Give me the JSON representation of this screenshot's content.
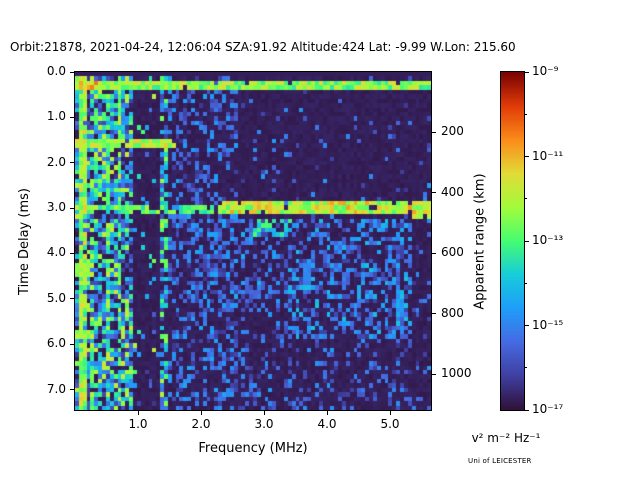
{
  "chart_data": {
    "type": "heatmap",
    "title": "Orbit:21878, 2021-04-24, 12:06:04 SZA:91.92 Altitude:424 Lat: -9.99 W.Lon: 215.60",
    "xlabel": "Frequency (MHz)",
    "ylabel": "Time Delay (ms)",
    "ylabel_right": "Apparent range (km)",
    "colorbar_label": "v² m⁻² Hz⁻¹",
    "credit": "Uni of LEICESTER",
    "x_range_mhz": [
      0.0,
      5.65
    ],
    "y_range_ms": [
      0.0,
      7.45
    ],
    "xticks": {
      "values": [
        1,
        2,
        3,
        4,
        5
      ],
      "labels": [
        "1.0",
        "2.0",
        "3.0",
        "4.0",
        "5.0"
      ]
    },
    "yticks": {
      "values": [
        0,
        1,
        2,
        3,
        4,
        5,
        6,
        7
      ],
      "labels": [
        "0.0",
        "1.0",
        "2.0",
        "3.0",
        "4.0",
        "5.0",
        "6.0",
        "7.0"
      ]
    },
    "right_axis": {
      "km_per_ms": 150,
      "values": [
        200,
        400,
        600,
        800,
        1000
      ],
      "labels": [
        "200",
        "400",
        "600",
        "800",
        "1000"
      ]
    },
    "colorbar": {
      "scale": "log10",
      "min_exp": -17,
      "max_exp": -9,
      "tick_exps": [
        -9,
        -11,
        -13,
        -15,
        -17
      ],
      "tick_labels": [
        "10⁻⁹",
        "10⁻¹¹",
        "10⁻¹³",
        "10⁻¹⁵",
        "10⁻¹⁷"
      ],
      "minor_exps": [
        -10,
        -12,
        -14,
        -16
      ]
    },
    "colormap": {
      "name": "turbo",
      "stops": [
        [
          0.0,
          48,
          18,
          59
        ],
        [
          0.1,
          64,
          64,
          162
        ],
        [
          0.2,
          70,
          107,
          227
        ],
        [
          0.3,
          31,
          158,
          250
        ],
        [
          0.4,
          24,
          205,
          218
        ],
        [
          0.5,
          70,
          253,
          114
        ],
        [
          0.6,
          164,
          252,
          60
        ],
        [
          0.7,
          226,
          220,
          56
        ],
        [
          0.8,
          252,
          140,
          27
        ],
        [
          0.9,
          225,
          60,
          8
        ],
        [
          1.0,
          122,
          4,
          3
        ]
      ]
    },
    "heatmap": {
      "nx": 92,
      "ny": 76,
      "seed": 1337,
      "background": 0.03,
      "features": {
        "sparse_speckle": {
          "prob": 0.05,
          "vmin": 0.08,
          "vmax": 0.3
        },
        "mid_speckle": {
          "f_min": 1.36,
          "f_max": 2.6,
          "prob": 0.28,
          "vmin": 0.08,
          "vmax": 0.32
        },
        "low_noise": {
          "f_max": 1.42,
          "prob": 0.6,
          "vmin": 0.08,
          "vmax": 0.45,
          "bright_prob": 0.2,
          "bright_vmin": 0.45,
          "bright_vmax": 0.68
        },
        "dark_column": {
          "f_min": 0.95,
          "f_max": 1.36,
          "keep_prob": 0.07
        },
        "bright_columns": [
          {
            "f": 0.12,
            "hw": 0.04,
            "prob": 0.85,
            "vmin": 0.45,
            "vmax": 0.72
          },
          {
            "f": 0.3,
            "hw": 0.03,
            "prob": 0.55,
            "vmin": 0.4,
            "vmax": 0.65
          },
          {
            "f": 0.5,
            "hw": 0.03,
            "prob": 0.5,
            "vmin": 0.38,
            "vmax": 0.6
          },
          {
            "f": 0.7,
            "hw": 0.03,
            "prob": 0.45,
            "vmin": 0.35,
            "vmax": 0.6
          },
          {
            "f": 1.42,
            "hw": 0.03,
            "prob": 0.45,
            "vmin": 0.35,
            "vmax": 0.58
          }
        ],
        "h_lines": [
          {
            "t": 0.25,
            "hw": 0.1,
            "f_min": 0.0,
            "f_max": 5.65,
            "prob": 0.92,
            "vmin": 0.45,
            "vmax": 0.7
          },
          {
            "t": 0.27,
            "hw": 0.12,
            "f_min": 0.0,
            "f_max": 0.35,
            "prob": 0.95,
            "vmin": 0.6,
            "vmax": 0.85
          },
          {
            "t": 1.55,
            "hw": 0.12,
            "f_min": 0.0,
            "f_max": 1.6,
            "prob": 0.9,
            "vmin": 0.5,
            "vmax": 0.72
          },
          {
            "t": 3.02,
            "hw": 0.12,
            "f_min": 0.0,
            "f_max": 2.35,
            "prob": 0.65,
            "vmin": 0.4,
            "vmax": 0.62
          },
          {
            "t": 3.02,
            "hw": 0.14,
            "f_min": 2.35,
            "f_max": 5.65,
            "prob": 0.95,
            "vmin": 0.5,
            "vmax": 0.78
          },
          {
            "t": 3.0,
            "hw": 0.2,
            "f_min": 5.3,
            "f_max": 5.65,
            "prob": 0.85,
            "vmin": 0.5,
            "vmax": 0.75
          },
          {
            "t": 3.42,
            "hw": 0.18,
            "f_min": 2.85,
            "f_max": 3.45,
            "prob": 0.55,
            "vmin": 0.32,
            "vmax": 0.55
          },
          {
            "t": 4.35,
            "hw": 0.12,
            "f_min": 0.0,
            "f_max": 0.28,
            "prob": 0.9,
            "vmin": 0.5,
            "vmax": 0.68
          },
          {
            "t": 5.8,
            "hw": 0.12,
            "f_min": 0.0,
            "f_max": 0.28,
            "prob": 0.9,
            "vmin": 0.5,
            "vmax": 0.68
          }
        ],
        "diffuse_regions": [
          {
            "f_min": 1.5,
            "f_max": 5.65,
            "t_min": 3.2,
            "t_max": 7.45,
            "prob": 0.1,
            "vmin": 0.08,
            "vmax": 0.28
          },
          {
            "f_min": 3.4,
            "f_max": 5.35,
            "t_min": 3.2,
            "t_max": 5.9,
            "prob": 0.38,
            "vmin": 0.1,
            "vmax": 0.38
          },
          {
            "f_min": 1.9,
            "f_max": 3.4,
            "t_min": 3.2,
            "t_max": 5.3,
            "prob": 0.25,
            "vmin": 0.1,
            "vmax": 0.34
          },
          {
            "f_min": 2.2,
            "f_max": 5.2,
            "t_min": 6.4,
            "t_max": 7.45,
            "prob": 0.15,
            "vmin": 0.08,
            "vmax": 0.3
          }
        ],
        "top_dark_ms": 0.12
      }
    }
  }
}
